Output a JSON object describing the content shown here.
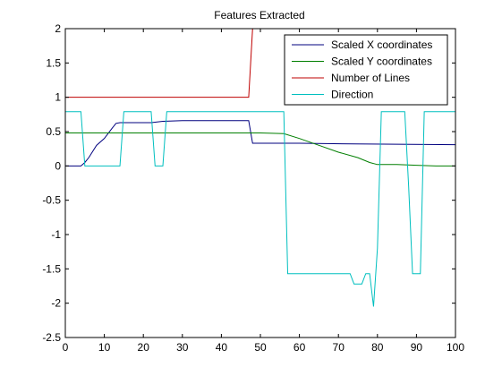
{
  "chart_data": {
    "type": "line",
    "title": "Features Extracted",
    "xlabel": "",
    "ylabel": "",
    "xlim": [
      0,
      100
    ],
    "ylim": [
      -2.5,
      2
    ],
    "xticks": [
      0,
      10,
      20,
      30,
      40,
      50,
      60,
      70,
      80,
      90,
      100
    ],
    "yticks": [
      -2.5,
      -2,
      -1.5,
      -1,
      -0.5,
      0,
      0.5,
      1,
      1.5,
      2
    ],
    "grid": false,
    "legend_position": "top-right",
    "series": [
      {
        "name": "Scaled X coordinates",
        "color": "#00007f",
        "x": [
          0,
          4,
          5,
          6,
          8,
          10,
          12,
          13,
          14,
          22,
          25,
          30,
          40,
          47,
          48,
          55,
          60,
          74,
          100
        ],
        "y": [
          0,
          0,
          0.05,
          0.12,
          0.3,
          0.4,
          0.55,
          0.62,
          0.63,
          0.63,
          0.65,
          0.66,
          0.66,
          0.66,
          0.33,
          0.33,
          0.33,
          0.32,
          0.31
        ]
      },
      {
        "name": "Scaled Y coordinates",
        "color": "#007f00",
        "x": [
          0,
          10,
          20,
          30,
          40,
          50,
          56,
          60,
          65,
          70,
          75,
          78,
          80,
          85,
          90,
          95,
          100
        ],
        "y": [
          0.48,
          0.48,
          0.48,
          0.48,
          0.48,
          0.48,
          0.47,
          0.4,
          0.3,
          0.2,
          0.12,
          0.05,
          0.02,
          0.02,
          0.01,
          0,
          0
        ]
      },
      {
        "name": "Number of Lines",
        "color": "#bf0000",
        "x": [
          0,
          47,
          48
        ],
        "y": [
          1,
          1,
          2
        ]
      },
      {
        "name": "Direction",
        "color": "#00bfbf",
        "x": [
          0,
          4,
          5,
          14,
          15,
          22,
          23,
          25,
          26,
          56,
          57,
          73,
          74,
          76,
          77,
          78,
          79,
          80,
          81,
          87,
          88,
          89,
          90,
          91,
          92,
          100
        ],
        "y": [
          0.79,
          0.79,
          0,
          0,
          0.79,
          0.79,
          0,
          0,
          0.79,
          0.79,
          -1.57,
          -1.57,
          -1.72,
          -1.72,
          -1.57,
          -1.57,
          -2.05,
          -1.2,
          0.79,
          0.79,
          -0.3,
          -1.57,
          -1.57,
          -1.57,
          0.79,
          0.79
        ]
      }
    ]
  }
}
